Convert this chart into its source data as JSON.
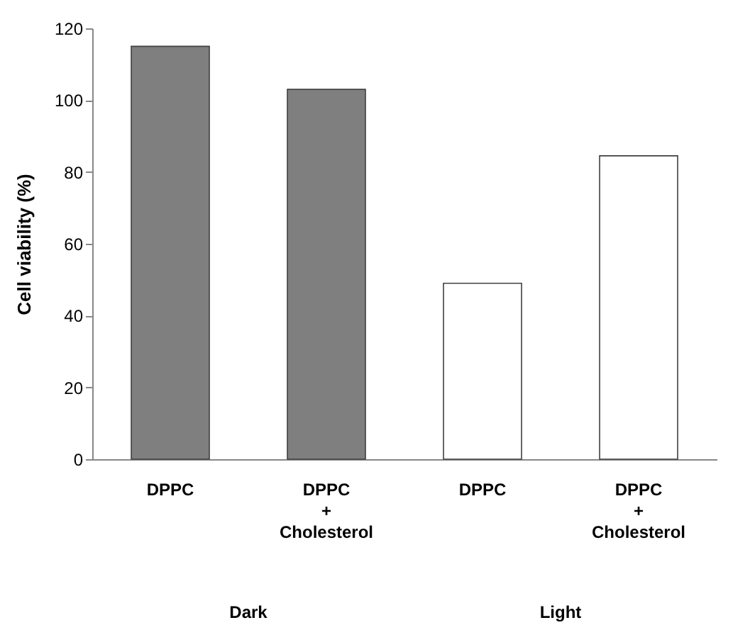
{
  "chart_data": {
    "type": "bar",
    "ylabel": "Cell viability (%)",
    "categories": [
      "DPPC",
      "DPPC + Cholesterol",
      "DPPC",
      "DPPC + Cholesterol"
    ],
    "values": [
      115,
      103,
      49,
      84.5
    ],
    "colors": [
      "#7f7f7f",
      "#7f7f7f",
      "#ffffff",
      "#ffffff"
    ],
    "ylim": [
      0,
      120
    ],
    "yticks": [
      0,
      20,
      40,
      60,
      80,
      100,
      120
    ],
    "annotations": [
      "Dark",
      "Light"
    ]
  }
}
